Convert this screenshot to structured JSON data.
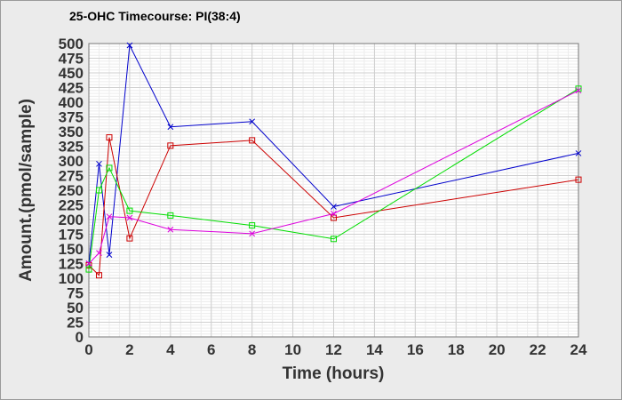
{
  "chart_data": {
    "type": "line",
    "title": "25-OHC Timecourse: PI(38:4)",
    "xlabel": "Time (hours)",
    "ylabel": "Amount.(pmol/sample)",
    "xlim": [
      0,
      24
    ],
    "ylim": [
      0,
      500
    ],
    "x_ticks": [
      0,
      2,
      4,
      6,
      8,
      10,
      12,
      14,
      16,
      18,
      20,
      22,
      24
    ],
    "y_ticks": [
      0,
      25,
      50,
      75,
      100,
      125,
      150,
      175,
      200,
      225,
      250,
      275,
      300,
      325,
      350,
      375,
      400,
      425,
      450,
      475,
      500
    ],
    "grid": true,
    "series": [
      {
        "color": "#0000cc",
        "marker": "x",
        "x": [
          0,
          0.5,
          1,
          2,
          4,
          8,
          12,
          24
        ],
        "y": [
          125,
          295,
          140,
          497,
          358,
          367,
          222,
          313
        ]
      },
      {
        "color": "#cc0000",
        "marker": "square",
        "x": [
          0,
          0.5,
          1,
          2,
          4,
          8,
          12,
          24
        ],
        "y": [
          122,
          105,
          340,
          168,
          326,
          335,
          203,
          268
        ]
      },
      {
        "color": "#00dd00",
        "marker": "square",
        "x": [
          0,
          0.5,
          1,
          2,
          4,
          8,
          12,
          24
        ],
        "y": [
          115,
          250,
          288,
          215,
          207,
          190,
          167,
          423
        ]
      },
      {
        "color": "#dd00dd",
        "marker": "x",
        "x": [
          0,
          0.5,
          1,
          2,
          4,
          8,
          12,
          24
        ],
        "y": [
          125,
          143,
          205,
          203,
          183,
          176,
          210,
          420
        ]
      }
    ]
  }
}
